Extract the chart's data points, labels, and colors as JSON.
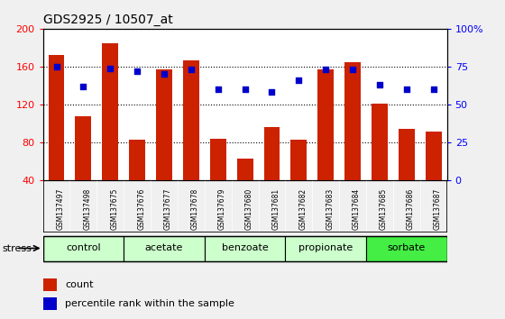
{
  "title": "GDS2925 / 10507_at",
  "samples": [
    "GSM137497",
    "GSM137498",
    "GSM137675",
    "GSM137676",
    "GSM137677",
    "GSM137678",
    "GSM137679",
    "GSM137680",
    "GSM137681",
    "GSM137682",
    "GSM137683",
    "GSM137684",
    "GSM137685",
    "GSM137686",
    "GSM137687"
  ],
  "counts": [
    172,
    108,
    185,
    83,
    157,
    167,
    84,
    63,
    96,
    83,
    157,
    165,
    121,
    94,
    91
  ],
  "percentiles": [
    75,
    62,
    74,
    72,
    70,
    73,
    60,
    60,
    58,
    66,
    73,
    73,
    63,
    60,
    60
  ],
  "groups": [
    {
      "label": "control",
      "start": 0,
      "end": 2
    },
    {
      "label": "acetate",
      "start": 3,
      "end": 5
    },
    {
      "label": "benzoate",
      "start": 6,
      "end": 8
    },
    {
      "label": "propionate",
      "start": 9,
      "end": 11
    },
    {
      "label": "sorbate",
      "start": 12,
      "end": 14
    }
  ],
  "group_colors": [
    "#ccffcc",
    "#ccffcc",
    "#ccffcc",
    "#ccffcc",
    "#44ee44"
  ],
  "bar_color": "#cc2200",
  "dot_color": "#0000cc",
  "ylim_left": [
    40,
    200
  ],
  "ylim_right": [
    0,
    100
  ],
  "yticks_left": [
    40,
    80,
    120,
    160,
    200
  ],
  "yticks_right": [
    0,
    25,
    50,
    75,
    100
  ],
  "ytick_labels_right": [
    "0",
    "25",
    "50",
    "75",
    "100%"
  ],
  "bar_bottom": 40,
  "fig_bg": "#f0f0f0",
  "plot_bg": "#ffffff",
  "xtick_bg": "#cccccc",
  "title_fontsize": 10,
  "legend_items": [
    "count",
    "percentile rank within the sample"
  ]
}
